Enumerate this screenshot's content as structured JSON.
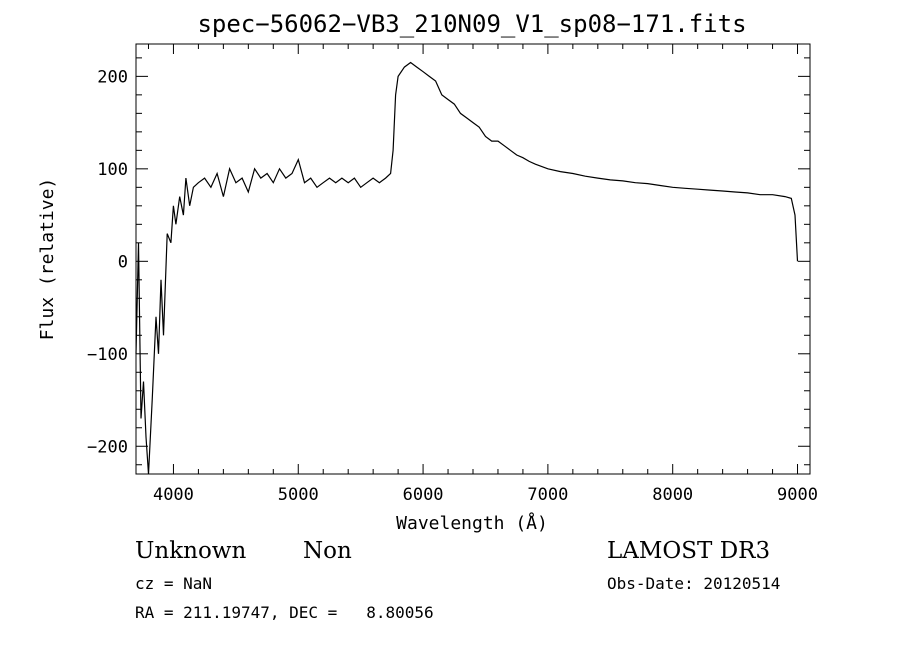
{
  "chart_data": {
    "type": "line",
    "title": "spec−56062−VB3_210N09_V1_sp08−171.fits",
    "xlabel": "Wavelength (Å)",
    "ylabel": "Flux (relative)",
    "xlim": [
      3700,
      9100
    ],
    "ylim": [
      -230,
      235
    ],
    "xticks": [
      4000,
      5000,
      6000,
      7000,
      8000,
      9000
    ],
    "xtick_labels": [
      "4000",
      "5000",
      "6000",
      "7000",
      "8000",
      "9000"
    ],
    "yticks": [
      -200,
      -100,
      0,
      100,
      200
    ],
    "ytick_labels": [
      "−200",
      "−100",
      "0",
      "100",
      "200"
    ],
    "grid": false,
    "series": [
      {
        "color": "#000000",
        "x": [
          3700,
          3720,
          3740,
          3760,
          3780,
          3800,
          3830,
          3860,
          3880,
          3900,
          3920,
          3950,
          3980,
          4000,
          4020,
          4050,
          4080,
          4100,
          4130,
          4160,
          4200,
          4250,
          4300,
          4350,
          4400,
          4450,
          4500,
          4550,
          4600,
          4650,
          4700,
          4750,
          4800,
          4850,
          4900,
          4950,
          5000,
          5050,
          5100,
          5150,
          5200,
          5250,
          5300,
          5350,
          5400,
          5450,
          5500,
          5550,
          5600,
          5650,
          5700,
          5740,
          5760,
          5780,
          5800,
          5850,
          5900,
          5950,
          6000,
          6050,
          6100,
          6150,
          6200,
          6250,
          6300,
          6350,
          6400,
          6450,
          6500,
          6550,
          6600,
          6650,
          6700,
          6750,
          6800,
          6850,
          6900,
          7000,
          7100,
          7200,
          7300,
          7400,
          7500,
          7600,
          7700,
          7800,
          7900,
          8000,
          8100,
          8200,
          8300,
          8400,
          8500,
          8600,
          8700,
          8800,
          8900,
          8950,
          8980,
          9000
        ],
        "y": [
          -100,
          20,
          -170,
          -130,
          -190,
          -230,
          -150,
          -60,
          -100,
          -20,
          -80,
          30,
          20,
          60,
          40,
          70,
          50,
          90,
          60,
          80,
          85,
          90,
          80,
          95,
          70,
          100,
          85,
          90,
          75,
          100,
          90,
          95,
          85,
          100,
          90,
          95,
          110,
          85,
          90,
          80,
          85,
          90,
          85,
          90,
          85,
          90,
          80,
          85,
          90,
          85,
          90,
          95,
          120,
          180,
          200,
          210,
          215,
          210,
          205,
          200,
          195,
          180,
          175,
          170,
          160,
          155,
          150,
          145,
          135,
          130,
          130,
          125,
          120,
          115,
          112,
          108,
          105,
          100,
          97,
          95,
          92,
          90,
          88,
          87,
          85,
          84,
          82,
          80,
          79,
          78,
          77,
          76,
          75,
          74,
          72,
          72,
          70,
          68,
          50,
          0
        ]
      }
    ]
  },
  "info": {
    "class_label": "Unknown",
    "subclass_label": "Non",
    "cz_text": "cz = NaN",
    "coords_text": "RA = 211.19747, DEC =   8.80056",
    "survey_label": "LAMOST DR3",
    "obs_date_text": "Obs-Date: 20120514"
  }
}
